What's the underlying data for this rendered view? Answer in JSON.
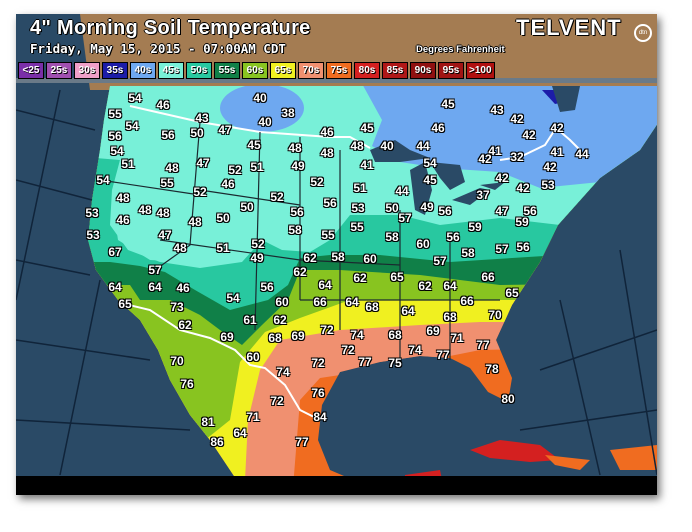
{
  "header": {
    "title": "4\" Morning Soil Temperature",
    "subtitle": "Friday, May 15, 2015 - 07:00AM CDT",
    "units": "Degrees Fahrenheit",
    "logo": "TELVENT",
    "logo_badge": "dtn"
  },
  "legend": [
    {
      "label": "<25",
      "color": "#7a2fa8"
    },
    {
      "label": "25s",
      "color": "#a050b0"
    },
    {
      "label": "30s",
      "color": "#f0a0c8"
    },
    {
      "label": "35s",
      "color": "#1c1ca8"
    },
    {
      "label": "40s",
      "color": "#6ea8f0"
    },
    {
      "label": "45s",
      "color": "#78f0d8"
    },
    {
      "label": "50s",
      "color": "#28c8a0"
    },
    {
      "label": "55s",
      "color": "#108048"
    },
    {
      "label": "60s",
      "color": "#88c420"
    },
    {
      "label": "65s",
      "color": "#f0f020"
    },
    {
      "label": "70s",
      "color": "#f09070"
    },
    {
      "label": "75s",
      "color": "#f06c20"
    },
    {
      "label": "80s",
      "color": "#d42020"
    },
    {
      "label": "85s",
      "color": "#b01818"
    },
    {
      "label": "90s",
      "color": "#901010"
    },
    {
      "label": "95s",
      "color": "#a01414"
    },
    {
      "label": ">100",
      "color": "#b01010"
    }
  ],
  "colors": {
    "ocean": "#2a4a66",
    "canada_land": "#a47c52",
    "lakes": "#2a4a66",
    "border": "#ffffff"
  },
  "map": {
    "readings": [
      "54",
      "46",
      "55",
      "54",
      "56",
      "56",
      "43",
      "50",
      "47",
      "40",
      "38",
      "40",
      "46",
      "54",
      "51",
      "48",
      "55",
      "47",
      "52",
      "45",
      "52",
      "51",
      "46",
      "48",
      "49",
      "48",
      "52",
      "54",
      "48",
      "48",
      "48",
      "53",
      "46",
      "53",
      "67",
      "47",
      "48",
      "50",
      "50",
      "52",
      "56",
      "56",
      "58",
      "55",
      "48",
      "51",
      "52",
      "49",
      "62",
      "62",
      "57",
      "45",
      "43",
      "42",
      "42",
      "42",
      "45",
      "46",
      "48",
      "40",
      "44",
      "41",
      "42",
      "32",
      "41",
      "44",
      "54",
      "41",
      "42",
      "42",
      "45",
      "51",
      "44",
      "37",
      "42",
      "53",
      "53",
      "50",
      "49",
      "56",
      "57",
      "47",
      "56",
      "59",
      "59",
      "55",
      "58",
      "60",
      "56",
      "58",
      "57",
      "56",
      "57",
      "58",
      "60",
      "62",
      "65",
      "66",
      "64",
      "64",
      "46",
      "65",
      "73",
      "62",
      "54",
      "56",
      "60",
      "66",
      "64",
      "61",
      "62",
      "69",
      "68",
      "69",
      "72",
      "60",
      "72",
      "74",
      "70",
      "76",
      "72",
      "76",
      "81",
      "71",
      "84",
      "64",
      "86",
      "77",
      "62",
      "64",
      "65",
      "64",
      "68",
      "64",
      "66",
      "68",
      "70",
      "74",
      "68",
      "69",
      "71",
      "77",
      "72",
      "77",
      "75",
      "74",
      "77",
      "78",
      "80"
    ]
  }
}
